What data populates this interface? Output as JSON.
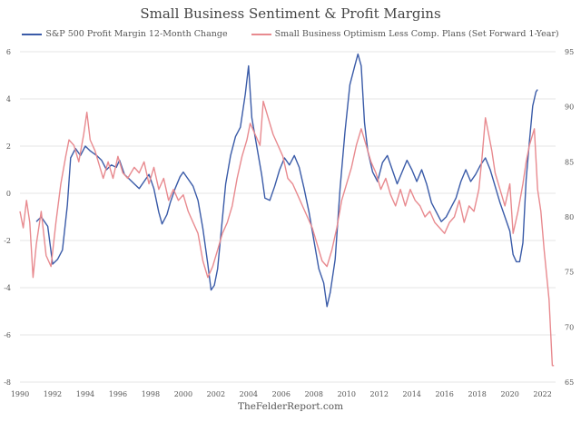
{
  "chart_data": {
    "type": "line",
    "title": "Small Business Sentiment & Profit Margins",
    "source": "TheFelderReport.com",
    "x_ticks": [
      "1990",
      "1992",
      "1994",
      "1996",
      "1998",
      "2000",
      "2002",
      "2004",
      "2006",
      "2008",
      "2010",
      "2012",
      "2014",
      "2016",
      "2018",
      "2020",
      "2022"
    ],
    "xlim": [
      1990,
      2022.8
    ],
    "left_axis": {
      "ylim": [
        -8,
        6
      ],
      "ticks": [
        "6",
        "4",
        "2",
        "0",
        "-2",
        "-4",
        "-6",
        "-8"
      ]
    },
    "right_axis": {
      "ylim": [
        65,
        95
      ],
      "ticks": [
        "95",
        "90",
        "85",
        "80",
        "75",
        "70",
        "65"
      ]
    },
    "grid": true,
    "series": [
      {
        "name": "S&P 500 Profit Margin 12-Month Change",
        "axis": "left",
        "color": "#3a5ba8",
        "points": [
          [
            1991.0,
            -1.2
          ],
          [
            1991.3,
            -1.0
          ],
          [
            1991.7,
            -1.4
          ],
          [
            1992.0,
            -3.0
          ],
          [
            1992.3,
            -2.8
          ],
          [
            1992.6,
            -2.4
          ],
          [
            1992.9,
            -0.5
          ],
          [
            1993.1,
            1.5
          ],
          [
            1993.4,
            1.9
          ],
          [
            1993.7,
            1.6
          ],
          [
            1994.0,
            2.0
          ],
          [
            1994.3,
            1.8
          ],
          [
            1994.7,
            1.6
          ],
          [
            1995.0,
            1.4
          ],
          [
            1995.3,
            1.0
          ],
          [
            1995.6,
            1.2
          ],
          [
            1995.9,
            1.1
          ],
          [
            1996.1,
            1.4
          ],
          [
            1996.4,
            0.8
          ],
          [
            1996.7,
            0.6
          ],
          [
            1997.0,
            0.4
          ],
          [
            1997.3,
            0.2
          ],
          [
            1997.6,
            0.5
          ],
          [
            1997.9,
            0.8
          ],
          [
            1998.2,
            0.2
          ],
          [
            1998.5,
            -0.8
          ],
          [
            1998.7,
            -1.3
          ],
          [
            1999.0,
            -0.9
          ],
          [
            1999.2,
            -0.4
          ],
          [
            1999.5,
            0.2
          ],
          [
            1999.8,
            0.7
          ],
          [
            2000.0,
            0.9
          ],
          [
            2000.3,
            0.6
          ],
          [
            2000.6,
            0.3
          ],
          [
            2000.9,
            -0.3
          ],
          [
            2001.2,
            -1.5
          ],
          [
            2001.5,
            -3.0
          ],
          [
            2001.7,
            -4.1
          ],
          [
            2001.9,
            -3.9
          ],
          [
            2002.1,
            -3.2
          ],
          [
            2002.3,
            -1.8
          ],
          [
            2002.6,
            0.4
          ],
          [
            2002.9,
            1.6
          ],
          [
            2003.2,
            2.4
          ],
          [
            2003.5,
            2.8
          ],
          [
            2003.8,
            4.2
          ],
          [
            2004.0,
            5.4
          ],
          [
            2004.2,
            3.2
          ],
          [
            2004.5,
            2.0
          ],
          [
            2004.8,
            0.8
          ],
          [
            2005.0,
            -0.2
          ],
          [
            2005.3,
            -0.3
          ],
          [
            2005.6,
            0.3
          ],
          [
            2005.9,
            1.0
          ],
          [
            2006.2,
            1.5
          ],
          [
            2006.5,
            1.2
          ],
          [
            2006.8,
            1.6
          ],
          [
            2007.1,
            1.1
          ],
          [
            2007.4,
            0.2
          ],
          [
            2007.7,
            -0.8
          ],
          [
            2008.0,
            -2.0
          ],
          [
            2008.3,
            -3.2
          ],
          [
            2008.6,
            -3.8
          ],
          [
            2008.8,
            -4.8
          ],
          [
            2009.0,
            -4.2
          ],
          [
            2009.3,
            -2.8
          ],
          [
            2009.6,
            0.2
          ],
          [
            2009.9,
            2.6
          ],
          [
            2010.2,
            4.6
          ],
          [
            2010.5,
            5.4
          ],
          [
            2010.7,
            5.9
          ],
          [
            2010.9,
            5.4
          ],
          [
            2011.1,
            3.0
          ],
          [
            2011.3,
            1.8
          ],
          [
            2011.6,
            0.9
          ],
          [
            2011.9,
            0.5
          ],
          [
            2012.2,
            1.3
          ],
          [
            2012.5,
            1.6
          ],
          [
            2012.8,
            1.0
          ],
          [
            2013.1,
            0.4
          ],
          [
            2013.4,
            0.9
          ],
          [
            2013.7,
            1.4
          ],
          [
            2014.0,
            1.0
          ],
          [
            2014.3,
            0.5
          ],
          [
            2014.6,
            1.0
          ],
          [
            2014.9,
            0.4
          ],
          [
            2015.2,
            -0.4
          ],
          [
            2015.5,
            -0.8
          ],
          [
            2015.8,
            -1.2
          ],
          [
            2016.1,
            -1.0
          ],
          [
            2016.4,
            -0.6
          ],
          [
            2016.7,
            -0.2
          ],
          [
            2017.0,
            0.5
          ],
          [
            2017.3,
            1.0
          ],
          [
            2017.6,
            0.5
          ],
          [
            2017.9,
            0.8
          ],
          [
            2018.2,
            1.2
          ],
          [
            2018.5,
            1.5
          ],
          [
            2018.8,
            1.0
          ],
          [
            2019.1,
            0.3
          ],
          [
            2019.4,
            -0.4
          ],
          [
            2019.7,
            -1.0
          ],
          [
            2020.0,
            -1.6
          ],
          [
            2020.2,
            -2.6
          ],
          [
            2020.4,
            -2.9
          ],
          [
            2020.6,
            -2.9
          ],
          [
            2020.8,
            -2.1
          ],
          [
            2021.0,
            0.6
          ],
          [
            2021.2,
            2.2
          ],
          [
            2021.4,
            3.7
          ],
          [
            2021.6,
            4.3
          ],
          [
            2021.7,
            4.4
          ]
        ]
      },
      {
        "name": "Small Business Optimism Less Comp. Plans (Set Forward 1-Year)",
        "axis": "right",
        "color": "#e88a8f",
        "points": [
          [
            1990.0,
            80.5
          ],
          [
            1990.2,
            79.0
          ],
          [
            1990.4,
            81.5
          ],
          [
            1990.6,
            79.5
          ],
          [
            1990.8,
            74.5
          ],
          [
            1991.0,
            77.5
          ],
          [
            1991.3,
            80.5
          ],
          [
            1991.6,
            76.5
          ],
          [
            1991.9,
            75.5
          ],
          [
            1992.2,
            79.5
          ],
          [
            1992.5,
            83.0
          ],
          [
            1992.8,
            85.5
          ],
          [
            1993.0,
            87.0
          ],
          [
            1993.3,
            86.5
          ],
          [
            1993.6,
            85.0
          ],
          [
            1993.9,
            87.5
          ],
          [
            1994.1,
            89.5
          ],
          [
            1994.3,
            87.0
          ],
          [
            1994.6,
            86.0
          ],
          [
            1994.9,
            84.5
          ],
          [
            1995.1,
            83.5
          ],
          [
            1995.4,
            85.0
          ],
          [
            1995.7,
            83.5
          ],
          [
            1996.0,
            85.5
          ],
          [
            1996.3,
            84.0
          ],
          [
            1996.6,
            83.5
          ],
          [
            1997.0,
            84.5
          ],
          [
            1997.3,
            84.0
          ],
          [
            1997.6,
            85.0
          ],
          [
            1997.9,
            83.0
          ],
          [
            1998.2,
            84.5
          ],
          [
            1998.5,
            82.5
          ],
          [
            1998.8,
            83.5
          ],
          [
            1999.1,
            81.5
          ],
          [
            1999.4,
            82.5
          ],
          [
            1999.7,
            81.5
          ],
          [
            2000.0,
            82.0
          ],
          [
            2000.3,
            80.5
          ],
          [
            2000.6,
            79.5
          ],
          [
            2000.9,
            78.5
          ],
          [
            2001.2,
            76.0
          ],
          [
            2001.5,
            74.5
          ],
          [
            2001.8,
            75.5
          ],
          [
            2002.1,
            77.0
          ],
          [
            2002.4,
            78.5
          ],
          [
            2002.7,
            79.5
          ],
          [
            2003.0,
            81.0
          ],
          [
            2003.3,
            83.5
          ],
          [
            2003.6,
            85.5
          ],
          [
            2003.9,
            87.0
          ],
          [
            2004.1,
            88.5
          ],
          [
            2004.4,
            87.5
          ],
          [
            2004.7,
            86.5
          ],
          [
            2004.9,
            90.5
          ],
          [
            2005.2,
            89.0
          ],
          [
            2005.5,
            87.5
          ],
          [
            2005.8,
            86.5
          ],
          [
            2006.1,
            85.5
          ],
          [
            2006.4,
            83.5
          ],
          [
            2006.7,
            83.0
          ],
          [
            2007.0,
            82.0
          ],
          [
            2007.3,
            81.0
          ],
          [
            2007.6,
            80.0
          ],
          [
            2007.9,
            79.0
          ],
          [
            2008.2,
            77.5
          ],
          [
            2008.5,
            76.0
          ],
          [
            2008.8,
            75.5
          ],
          [
            2009.1,
            77.0
          ],
          [
            2009.4,
            79.0
          ],
          [
            2009.7,
            81.5
          ],
          [
            2010.0,
            83.0
          ],
          [
            2010.3,
            84.5
          ],
          [
            2010.6,
            86.5
          ],
          [
            2010.9,
            88.0
          ],
          [
            2011.2,
            86.5
          ],
          [
            2011.5,
            85.0
          ],
          [
            2011.8,
            84.0
          ],
          [
            2012.1,
            82.5
          ],
          [
            2012.4,
            83.5
          ],
          [
            2012.7,
            82.0
          ],
          [
            2013.0,
            81.0
          ],
          [
            2013.3,
            82.5
          ],
          [
            2013.6,
            81.0
          ],
          [
            2013.9,
            82.5
          ],
          [
            2014.2,
            81.5
          ],
          [
            2014.5,
            81.0
          ],
          [
            2014.8,
            80.0
          ],
          [
            2015.1,
            80.5
          ],
          [
            2015.4,
            79.5
          ],
          [
            2015.7,
            79.0
          ],
          [
            2016.0,
            78.5
          ],
          [
            2016.3,
            79.5
          ],
          [
            2016.6,
            80.0
          ],
          [
            2016.9,
            81.5
          ],
          [
            2017.2,
            79.5
          ],
          [
            2017.5,
            81.0
          ],
          [
            2017.8,
            80.5
          ],
          [
            2018.1,
            82.5
          ],
          [
            2018.3,
            85.5
          ],
          [
            2018.5,
            89.0
          ],
          [
            2018.7,
            87.5
          ],
          [
            2018.9,
            86.0
          ],
          [
            2019.1,
            84.0
          ],
          [
            2019.4,
            82.5
          ],
          [
            2019.7,
            81.0
          ],
          [
            2020.0,
            83.0
          ],
          [
            2020.2,
            78.5
          ],
          [
            2020.5,
            80.5
          ],
          [
            2020.8,
            83.0
          ],
          [
            2021.0,
            85.0
          ],
          [
            2021.2,
            86.5
          ],
          [
            2021.5,
            88.0
          ],
          [
            2021.7,
            82.5
          ],
          [
            2021.9,
            80.5
          ],
          [
            2022.1,
            77.0
          ],
          [
            2022.3,
            74.0
          ],
          [
            2022.4,
            72.5
          ],
          [
            2022.5,
            69.5
          ],
          [
            2022.6,
            66.5
          ],
          [
            2022.7,
            66.5
          ]
        ]
      }
    ]
  }
}
